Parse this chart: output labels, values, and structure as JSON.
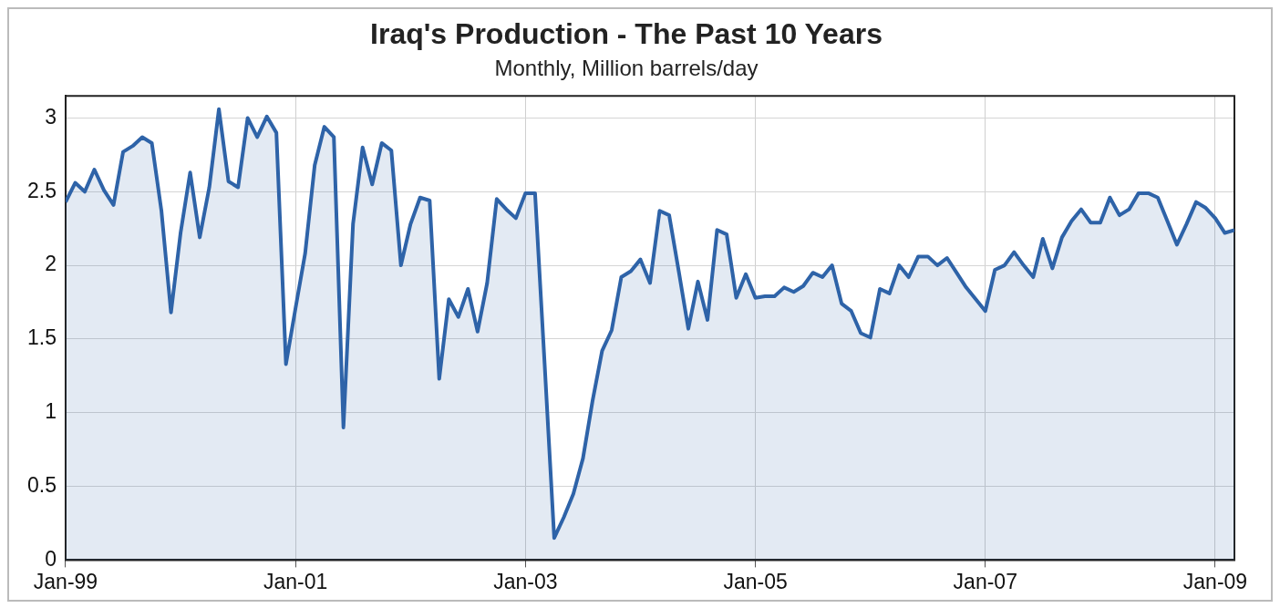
{
  "chart_data": {
    "type": "area",
    "title": "Iraq's Production - The Past 10 Years",
    "subtitle": "Monthly, Million barrels/day",
    "x": [
      "1999-01",
      "1999-02",
      "1999-03",
      "1999-04",
      "1999-05",
      "1999-06",
      "1999-07",
      "1999-08",
      "1999-09",
      "1999-10",
      "1999-11",
      "1999-12",
      "2000-01",
      "2000-02",
      "2000-03",
      "2000-04",
      "2000-05",
      "2000-06",
      "2000-07",
      "2000-08",
      "2000-09",
      "2000-10",
      "2000-11",
      "2000-12",
      "2001-01",
      "2001-02",
      "2001-03",
      "2001-04",
      "2001-05",
      "2001-06",
      "2001-07",
      "2001-08",
      "2001-09",
      "2001-10",
      "2001-11",
      "2001-12",
      "2002-01",
      "2002-02",
      "2002-03",
      "2002-04",
      "2002-05",
      "2002-06",
      "2002-07",
      "2002-08",
      "2002-09",
      "2002-10",
      "2002-11",
      "2002-12",
      "2003-01",
      "2003-02",
      "2003-03",
      "2003-04",
      "2003-05",
      "2003-06",
      "2003-07",
      "2003-08",
      "2003-09",
      "2003-10",
      "2003-11",
      "2003-12",
      "2004-01",
      "2004-02",
      "2004-03",
      "2004-04",
      "2004-05",
      "2004-06",
      "2004-07",
      "2004-08",
      "2004-09",
      "2004-10",
      "2004-11",
      "2004-12",
      "2005-01",
      "2005-02",
      "2005-03",
      "2005-04",
      "2005-05",
      "2005-06",
      "2005-07",
      "2005-08",
      "2005-09",
      "2005-10",
      "2005-11",
      "2005-12",
      "2006-01",
      "2006-02",
      "2006-03",
      "2006-04",
      "2006-05",
      "2006-06",
      "2006-07",
      "2006-08",
      "2006-09",
      "2006-10",
      "2006-11",
      "2006-12",
      "2007-01",
      "2007-02",
      "2007-03",
      "2007-04",
      "2007-05",
      "2007-06",
      "2007-07",
      "2007-08",
      "2007-09",
      "2007-10",
      "2007-11",
      "2007-12",
      "2008-01",
      "2008-02",
      "2008-03",
      "2008-04",
      "2008-05",
      "2008-06",
      "2008-07",
      "2008-08",
      "2008-09",
      "2008-10",
      "2008-11",
      "2008-12",
      "2009-01",
      "2009-02",
      "2009-03"
    ],
    "series": [
      {
        "color": "#2e63a8",
        "values": [
          2.43,
          2.56,
          2.5,
          2.65,
          2.51,
          2.41,
          2.77,
          2.81,
          2.87,
          2.83,
          2.37,
          1.68,
          2.22,
          2.63,
          2.19,
          2.53,
          3.06,
          2.57,
          2.53,
          3.0,
          2.87,
          3.01,
          2.9,
          1.33,
          1.71,
          2.08,
          2.68,
          2.94,
          2.87,
          0.9,
          2.28,
          2.8,
          2.55,
          2.83,
          2.78,
          2.0,
          2.28,
          2.46,
          2.44,
          1.23,
          1.77,
          1.65,
          1.84,
          1.55,
          1.88,
          2.45,
          2.38,
          2.32,
          2.49,
          2.49,
          1.33,
          0.15,
          0.29,
          0.45,
          0.69,
          1.08,
          1.42,
          1.56,
          1.92,
          1.96,
          2.04,
          1.88,
          2.37,
          2.34,
          1.96,
          1.57,
          1.89,
          1.63,
          2.24,
          2.21,
          1.78,
          1.94,
          1.78,
          1.79,
          1.79,
          1.85,
          1.82,
          1.86,
          1.95,
          1.92,
          2.0,
          1.74,
          1.69,
          1.54,
          1.51,
          1.84,
          1.81,
          2.0,
          1.92,
          2.06,
          2.06,
          2.0,
          2.05,
          1.95,
          1.85,
          1.77,
          1.69,
          1.97,
          2.0,
          2.09,
          2.0,
          1.92,
          2.18,
          1.98,
          2.19,
          2.3,
          2.38,
          2.29,
          2.29,
          2.46,
          2.34,
          2.38,
          2.49,
          2.49,
          2.46,
          2.3,
          2.14,
          2.28,
          2.43,
          2.39,
          2.32,
          2.22,
          2.24
        ]
      }
    ],
    "xlim": [
      "1999-01",
      "2009-03"
    ],
    "xticks": [
      {
        "value": "1999-01",
        "label": "Jan-99"
      },
      {
        "value": "2001-01",
        "label": "Jan-01"
      },
      {
        "value": "2003-01",
        "label": "Jan-03"
      },
      {
        "value": "2005-01",
        "label": "Jan-05"
      },
      {
        "value": "2007-01",
        "label": "Jan-07"
      },
      {
        "value": "2009-01",
        "label": "Jan-09"
      }
    ],
    "ylim": [
      0,
      3.15
    ],
    "yticks": [
      0,
      0.5,
      1,
      1.5,
      2,
      2.5,
      3
    ],
    "grid": true,
    "legend": false
  }
}
